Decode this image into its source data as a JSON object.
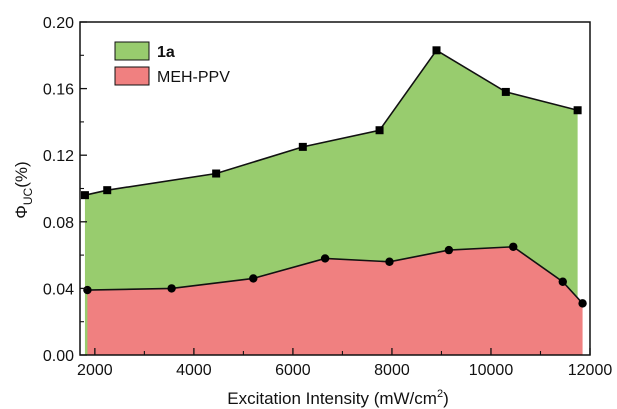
{
  "chart_data": {
    "type": "area",
    "xlabel": "Excitation Intensity (mW/cm",
    "xlabel_sup": "2",
    "xlabel_end": ")",
    "ylabel_main": "Φ",
    "ylabel_sub": "UC",
    "ylabel_end": "(%)",
    "xlim": [
      1700,
      12000
    ],
    "ylim": [
      0.0,
      0.2
    ],
    "x_ticks": [
      2000,
      4000,
      6000,
      8000,
      10000,
      12000
    ],
    "x_tick_labels": [
      "2000",
      "4000",
      "6000",
      "8000",
      "10000",
      "12000"
    ],
    "y_ticks": [
      0.0,
      0.04,
      0.08,
      0.12,
      0.16,
      0.2
    ],
    "y_tick_labels": [
      "0.00",
      "0.04",
      "0.08",
      "0.12",
      "0.16",
      "0.20"
    ],
    "grid": false,
    "legend_position": "top-left",
    "series": [
      {
        "name": "1a",
        "marker": "square",
        "color": "#98cc6e",
        "x": [
          1800,
          2250,
          4450,
          6200,
          7750,
          8900,
          10300,
          11750
        ],
        "y": [
          0.096,
          0.099,
          0.109,
          0.125,
          0.135,
          0.183,
          0.158,
          0.147
        ]
      },
      {
        "name": "MEH-PPV",
        "marker": "circle",
        "color": "#f08080",
        "x": [
          1850,
          3550,
          5200,
          6650,
          7950,
          9150,
          10450,
          11450,
          11850
        ],
        "y": [
          0.039,
          0.04,
          0.046,
          0.058,
          0.056,
          0.063,
          0.065,
          0.044,
          0.031
        ]
      }
    ]
  }
}
